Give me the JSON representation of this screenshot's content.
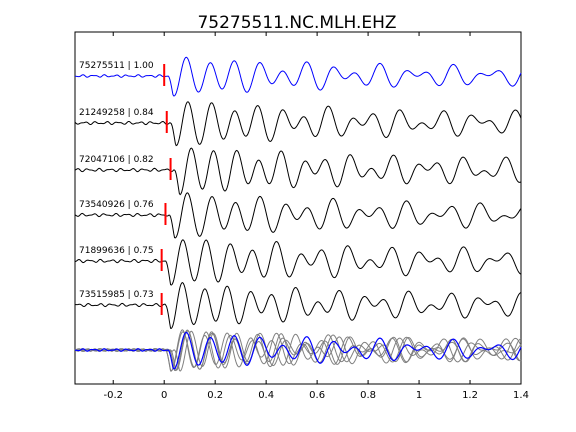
{
  "chart_data": {
    "type": "line",
    "title": "75275511.NC.MLH.EHZ",
    "xlabel": "",
    "ylabel": "",
    "xlim": [
      -0.35,
      1.4
    ],
    "xticks": [
      -0.2,
      0,
      0.2,
      0.4,
      0.6,
      0.8,
      1,
      1.2,
      1.4
    ],
    "xtick_labels": [
      "-0.2",
      "0",
      "0.2",
      "0.4",
      "0.6",
      "0.8",
      "1",
      "1.2",
      "1.4"
    ],
    "grid": false,
    "colors": {
      "master": "#0000ff",
      "trace": "#000000",
      "overlay": "#808080",
      "pick": "#ff0000"
    },
    "series": [
      {
        "name": "75275511 | 1.00",
        "pick_time": 0.0,
        "color": "#0000ff"
      },
      {
        "name": "21249258 | 0.84",
        "pick_time": 0.01,
        "color": "#000000"
      },
      {
        "name": "72047106 | 0.82",
        "pick_time": 0.025,
        "color": "#000000"
      },
      {
        "name": "73540926 | 0.76",
        "pick_time": 0.005,
        "color": "#000000"
      },
      {
        "name": "71899636 | 0.75",
        "pick_time": -0.01,
        "color": "#000000"
      },
      {
        "name": "73515985 | 0.73",
        "pick_time": -0.01,
        "color": "#000000"
      }
    ],
    "stack_trace_count": 6
  }
}
